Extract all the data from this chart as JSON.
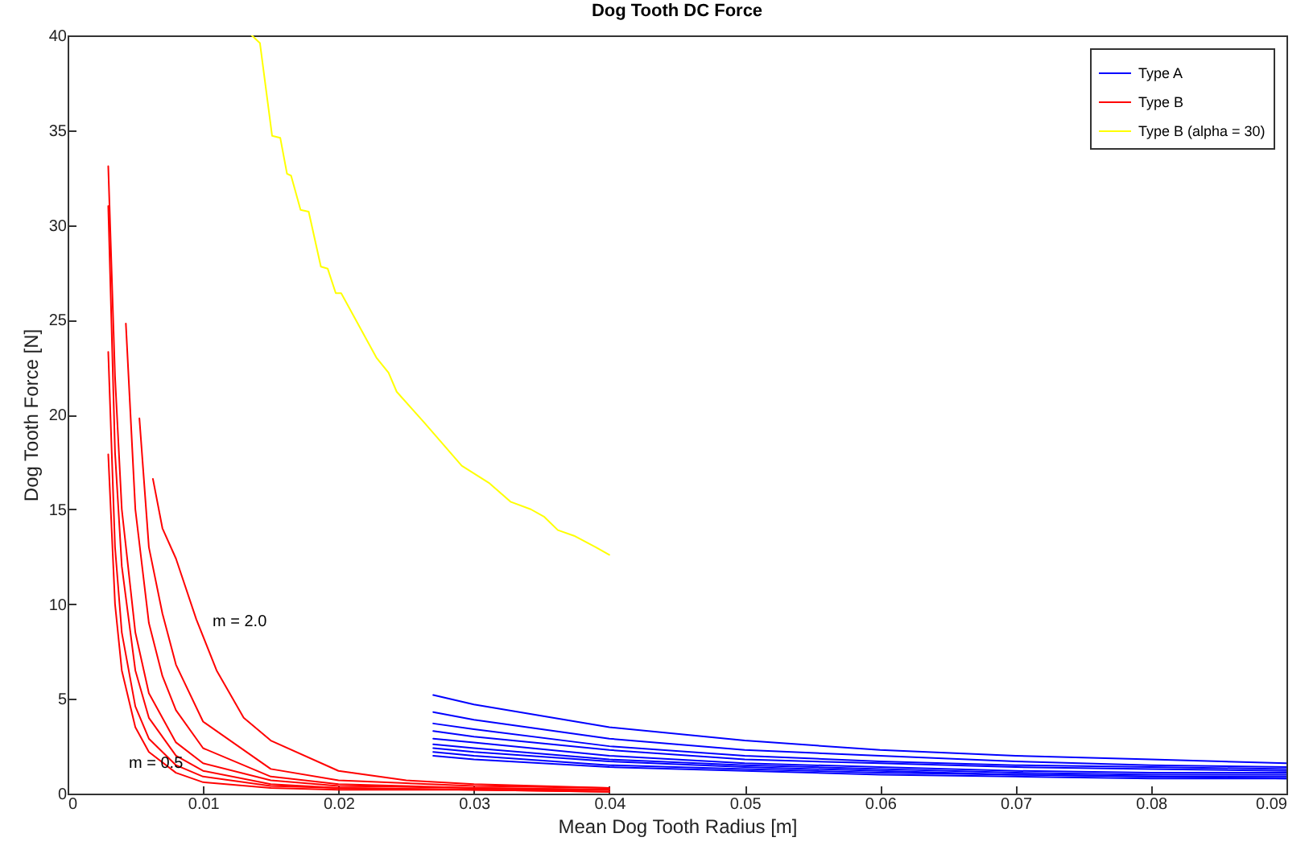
{
  "chart_data": {
    "type": "line",
    "title": "Dog Tooth DC Force",
    "xlabel": "Mean Dog Tooth Radius [m]",
    "ylabel": "Dog Tooth Force [N]",
    "xlim": [
      0,
      0.09
    ],
    "xticks": [
      0,
      0.01,
      0.02,
      0.03,
      0.04,
      0.05,
      0.06,
      0.07,
      0.08,
      0.09
    ],
    "ylim": [
      0,
      40
    ],
    "yticks": [
      0,
      5,
      10,
      15,
      20,
      25,
      30,
      35,
      40
    ],
    "legend": "top right",
    "annotations": [
      "m = 2.0",
      "m = 0.5"
    ],
    "series": [
      {
        "name": "Type A",
        "color": "#0000ff",
        "x": [
          0.027,
          0.03,
          0.04,
          0.05,
          0.06,
          0.07,
          0.08,
          0.09
        ],
        "values": [
          5.2,
          4.7,
          3.5,
          2.8,
          2.3,
          2.0,
          1.8,
          1.6
        ]
      },
      {
        "name": "Type B",
        "color": "#ff0000",
        "x": [
          0.003,
          0.0035,
          0.004,
          0.005,
          0.006,
          0.008,
          0.01,
          0.015,
          0.02,
          0.03,
          0.04
        ],
        "values": [
          17.9,
          10,
          6.5,
          3.5,
          2.2,
          1.1,
          0.6,
          0.3,
          0.2,
          0.2,
          0.1
        ]
      },
      {
        "name": "Type B (alpha = 30)",
        "color": "#ffff00",
        "x": [
          0.0136,
          0.0142,
          0.0151,
          0.0157,
          0.0162,
          0.0165,
          0.0172,
          0.0178,
          0.0187,
          0.0192,
          0.0198,
          0.0202,
          0.0228,
          0.0237,
          0.0243,
          0.0263,
          0.0291,
          0.0311,
          0.0327,
          0.0342,
          0.0352,
          0.0362,
          0.0374,
          0.039,
          0.04
        ],
        "values": [
          40,
          39.6,
          34.7,
          34.6,
          32.7,
          32.6,
          30.8,
          30.7,
          27.8,
          27.7,
          26.4,
          26.4,
          23,
          22.2,
          21.2,
          19.6,
          17.3,
          16.4,
          15.4,
          15,
          14.6,
          13.9,
          13.6,
          13,
          12.6
        ]
      },
      {
        "color": "#0000ff",
        "x": [
          0.027,
          0.03,
          0.04,
          0.05,
          0.06,
          0.07,
          0.08,
          0.09
        ],
        "values": [
          4.3,
          3.9,
          2.9,
          2.3,
          2.0,
          1.7,
          1.5,
          1.4
        ]
      },
      {
        "color": "#0000ff",
        "x": [
          0.027,
          0.03,
          0.04,
          0.05,
          0.06,
          0.07,
          0.08,
          0.09
        ],
        "values": [
          3.7,
          3.4,
          2.5,
          2.0,
          1.7,
          1.5,
          1.4,
          1.3
        ]
      },
      {
        "color": "#0000ff",
        "x": [
          0.027,
          0.03,
          0.04,
          0.05,
          0.06,
          0.07,
          0.08,
          0.09
        ],
        "values": [
          3.3,
          3.0,
          2.3,
          1.8,
          1.6,
          1.4,
          1.3,
          1.2
        ]
      },
      {
        "color": "#0000ff",
        "x": [
          0.027,
          0.03,
          0.04,
          0.05,
          0.06,
          0.07,
          0.08,
          0.09
        ],
        "values": [
          2.9,
          2.7,
          2.0,
          1.6,
          1.4,
          1.2,
          1.1,
          1.1
        ]
      },
      {
        "color": "#0000ff",
        "x": [
          0.027,
          0.03,
          0.04,
          0.05,
          0.06,
          0.07,
          0.08,
          0.09
        ],
        "values": [
          2.6,
          2.4,
          1.8,
          1.5,
          1.3,
          1.1,
          1.0,
          1.0
        ]
      },
      {
        "color": "#0000ff",
        "x": [
          0.027,
          0.03,
          0.04,
          0.05,
          0.06,
          0.07,
          0.08,
          0.09
        ],
        "values": [
          2.4,
          2.2,
          1.7,
          1.4,
          1.2,
          1.0,
          0.9,
          0.9
        ]
      },
      {
        "color": "#0000ff",
        "x": [
          0.027,
          0.03,
          0.04,
          0.05,
          0.06,
          0.07,
          0.08,
          0.09
        ],
        "values": [
          2.2,
          2.0,
          1.5,
          1.3,
          1.1,
          1.0,
          0.9,
          0.8
        ]
      },
      {
        "color": "#0000ff",
        "x": [
          0.027,
          0.03,
          0.04,
          0.05,
          0.06,
          0.07,
          0.08,
          0.09
        ],
        "values": [
          2.0,
          1.8,
          1.4,
          1.2,
          1.0,
          0.9,
          0.8,
          0.8
        ]
      },
      {
        "color": "#ff0000",
        "x": [
          0.003,
          0.0035,
          0.004,
          0.005,
          0.006,
          0.008,
          0.01,
          0.015,
          0.02,
          0.03,
          0.04
        ],
        "values": [
          23.3,
          13,
          8.5,
          4.6,
          2.9,
          1.5,
          0.9,
          0.4,
          0.3,
          0.2,
          0.1
        ]
      },
      {
        "color": "#ff0000",
        "x": [
          0.003,
          0.0035,
          0.004,
          0.005,
          0.006,
          0.008,
          0.01,
          0.015,
          0.02,
          0.03,
          0.04
        ],
        "values": [
          31,
          18,
          12,
          6.5,
          4.0,
          2.0,
          1.2,
          0.5,
          0.3,
          0.2,
          0.2
        ]
      },
      {
        "color": "#ff0000",
        "x": [
          0.003,
          0.0035,
          0.004,
          0.005,
          0.006,
          0.008,
          0.01,
          0.015,
          0.02,
          0.03,
          0.04
        ],
        "values": [
          33.1,
          22,
          15,
          8.5,
          5.3,
          2.7,
          1.6,
          0.7,
          0.4,
          0.3,
          0.2
        ]
      },
      {
        "color": "#ff0000",
        "x": [
          0.0043,
          0.005,
          0.006,
          0.007,
          0.008,
          0.01,
          0.015,
          0.02,
          0.03,
          0.04
        ],
        "values": [
          24.8,
          15,
          9,
          6.2,
          4.4,
          2.4,
          0.9,
          0.5,
          0.3,
          0.2
        ]
      },
      {
        "color": "#ff0000",
        "x": [
          0.0053,
          0.006,
          0.007,
          0.008,
          0.01,
          0.015,
          0.02,
          0.03,
          0.04
        ],
        "values": [
          19.8,
          13,
          9.5,
          6.8,
          3.8,
          1.3,
          0.7,
          0.4,
          0.3
        ]
      },
      {
        "color": "#ff0000",
        "x": [
          0.0063,
          0.007,
          0.008,
          0.0095,
          0.011,
          0.013,
          0.015,
          0.02,
          0.025,
          0.03,
          0.04
        ],
        "values": [
          16.6,
          14,
          12.4,
          9.2,
          6.5,
          4.0,
          2.8,
          1.2,
          0.7,
          0.5,
          0.3
        ]
      }
    ]
  }
}
